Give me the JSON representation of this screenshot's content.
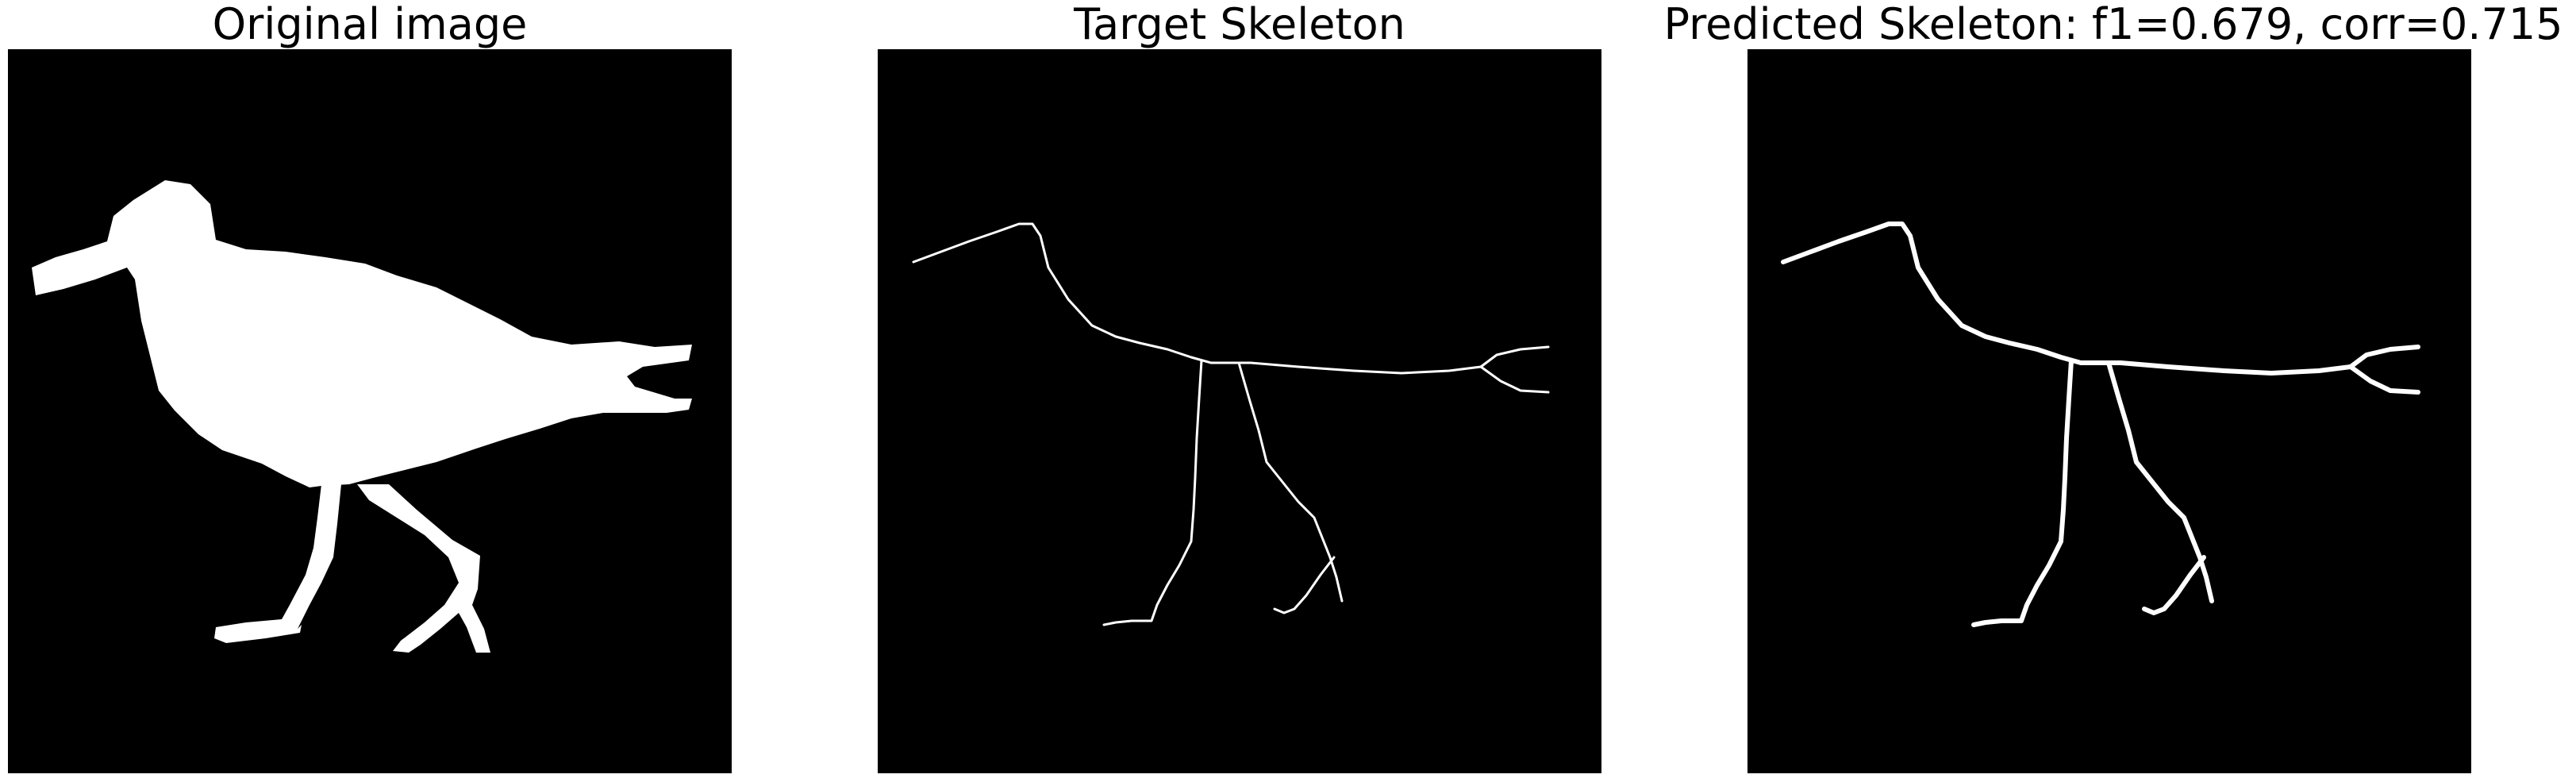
{
  "figure": {
    "panels": [
      {
        "title": "Original image",
        "kind": "silhouette"
      },
      {
        "title": "Target Skeleton",
        "kind": "skeleton-thin"
      },
      {
        "title": "Predicted Skeleton: f1=0.679, corr=0.715",
        "kind": "skeleton-thick"
      }
    ],
    "colors": {
      "background": "#000000",
      "foreground": "#ffffff",
      "page": "#ffffff"
    }
  }
}
